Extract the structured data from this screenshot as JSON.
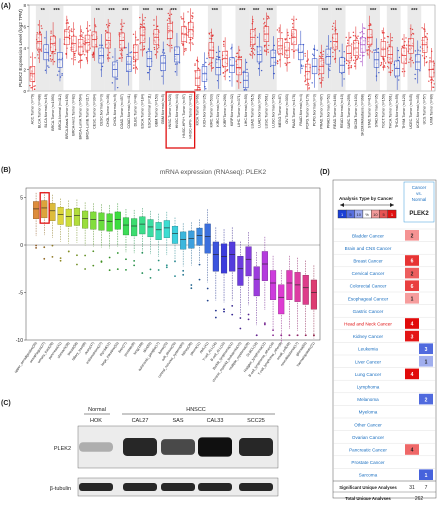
{
  "panel_labels": {
    "a": "(A)",
    "b": "(B)",
    "c": "(C)",
    "d": "(D)"
  },
  "chart_data": [
    {
      "type": "box",
      "panel": "A",
      "ylabel": "PLEK2 Expression Level (log2 TPM)",
      "xlabel": "",
      "ylim": [
        0,
        8
      ],
      "yticks": [
        "0",
        "2",
        "4",
        "6",
        "8"
      ],
      "colors": {
        "tumor": "#e02020",
        "normal": "#2040c0",
        "metastasis": "#a040c0",
        "gray": "#d8d8d8"
      },
      "categories": [
        {
          "label": "ACC.Tumor (n=79)",
          "kind": "tumor",
          "median": 1.6,
          "sig": ""
        },
        {
          "label": "BLCA.Tumor (n=408)",
          "kind": "tumor",
          "median": 4.6,
          "sig": "**"
        },
        {
          "label": "BLCA.Normal (n=19)",
          "kind": "normal",
          "median": 3.6,
          "sig": ""
        },
        {
          "label": "BRCA.Tumor (n=1093)",
          "kind": "tumor",
          "median": 4.4,
          "sig": "***"
        },
        {
          "label": "BRCA.Normal (n=112)",
          "kind": "normal",
          "median": 2.9,
          "sig": ""
        },
        {
          "label": "BRCA-Basal.Tumor (n=190)",
          "kind": "tumor",
          "median": 5.0,
          "sig": ""
        },
        {
          "label": "BRCA-Her2.Tumor (n=82)",
          "kind": "tumor",
          "median": 4.4,
          "sig": ""
        },
        {
          "label": "BRCA-LumA.Tumor (n=564)",
          "kind": "tumor",
          "median": 4.1,
          "sig": ""
        },
        {
          "label": "BRCA-LumB.Tumor (n=217)",
          "kind": "tumor",
          "median": 4.5,
          "sig": ""
        },
        {
          "label": "CESC.Tumor (n=304)",
          "kind": "tumor",
          "median": 4.8,
          "sig": "**"
        },
        {
          "label": "CESC.Normal (n=3)",
          "kind": "normal",
          "median": 3.3,
          "sig": ""
        },
        {
          "label": "CHOL.Tumor (n=36)",
          "kind": "tumor",
          "median": 4.7,
          "sig": "***"
        },
        {
          "label": "CHOL.Normal (n=9)",
          "kind": "normal",
          "median": 2.0,
          "sig": ""
        },
        {
          "label": "COAD.Tumor (n=457)",
          "kind": "tumor",
          "median": 4.7,
          "sig": "***"
        },
        {
          "label": "COAD.Normal (n=41)",
          "kind": "normal",
          "median": 2.5,
          "sig": ""
        },
        {
          "label": "DLBC.Tumor (n=48)",
          "kind": "tumor",
          "median": 3.6,
          "sig": ""
        },
        {
          "label": "ESCA.Tumor (n=184)",
          "kind": "tumor",
          "median": 5.2,
          "sig": "***"
        },
        {
          "label": "ESCA.Normal (n=11)",
          "kind": "normal",
          "median": 3.0,
          "sig": ""
        },
        {
          "label": "GBM.Tumor (n=153)",
          "kind": "tumor",
          "median": 5.0,
          "sig": "***"
        },
        {
          "label": "GBM.Normal (n=5)",
          "kind": "normal",
          "median": 2.6,
          "sig": ""
        },
        {
          "label": "HNSC.Tumor (n=520)",
          "kind": "tumor",
          "median": 5.6,
          "sig": "***"
        },
        {
          "label": "HNSC.Normal (n=44)",
          "kind": "normal",
          "median": 3.4,
          "sig": ""
        },
        {
          "label": "HNSC-HPV+.Tumor (n=97)",
          "kind": "tumor",
          "median": 5.3,
          "sig": ""
        },
        {
          "label": "HNSC-HPV-.Tumor (n=421)",
          "kind": "tumor",
          "median": 5.7,
          "sig": ""
        },
        {
          "label": "KICH.Tumor (n=66)",
          "kind": "tumor",
          "median": 1.2,
          "sig": ""
        },
        {
          "label": "KICH.Normal (n=25)",
          "kind": "normal",
          "median": 1.6,
          "sig": ""
        },
        {
          "label": "KIRC.Tumor (n=533)",
          "kind": "tumor",
          "median": 3.8,
          "sig": "***"
        },
        {
          "label": "KIRC.Normal (n=72)",
          "kind": "normal",
          "median": 2.2,
          "sig": ""
        },
        {
          "label": "KIRP.Tumor (n=290)",
          "kind": "tumor",
          "median": 3.0,
          "sig": ""
        },
        {
          "label": "KIRP.Normal (n=32)",
          "kind": "normal",
          "median": 2.4,
          "sig": ""
        },
        {
          "label": "LIHC.Tumor (n=371)",
          "kind": "tumor",
          "median": 2.2,
          "sig": "***"
        },
        {
          "label": "LIHC.Normal (n=50)",
          "kind": "normal",
          "median": 1.0,
          "sig": ""
        },
        {
          "label": "LUAD.Tumor (n=515)",
          "kind": "tumor",
          "median": 5.0,
          "sig": "***"
        },
        {
          "label": "LUAD.Normal (n=59)",
          "kind": "normal",
          "median": 3.4,
          "sig": ""
        },
        {
          "label": "LUSC.Tumor (n=501)",
          "kind": "tumor",
          "median": 5.3,
          "sig": "***"
        },
        {
          "label": "LUSC.Normal (n=52)",
          "kind": "normal",
          "median": 3.1,
          "sig": ""
        },
        {
          "label": "MESO.Tumor (n=87)",
          "kind": "tumor",
          "median": 4.2,
          "sig": ""
        },
        {
          "label": "OV.Tumor (n=303)",
          "kind": "tumor",
          "median": 3.8,
          "sig": ""
        },
        {
          "label": "PAAD.Tumor (n=178)",
          "kind": "tumor",
          "median": 5.0,
          "sig": ""
        },
        {
          "label": "PAAD.Normal (n=4)",
          "kind": "normal",
          "median": 3.6,
          "sig": ""
        },
        {
          "label": "PCPG.Tumor (n=179)",
          "kind": "tumor",
          "median": 1.8,
          "sig": ""
        },
        {
          "label": "PCPG.Normal (n=3)",
          "kind": "normal",
          "median": 2.3,
          "sig": ""
        },
        {
          "label": "PRAD.Tumor (n=497)",
          "kind": "tumor",
          "median": 2.3,
          "sig": "***"
        },
        {
          "label": "PRAD.Normal (n=52)",
          "kind": "normal",
          "median": 3.2,
          "sig": ""
        },
        {
          "label": "READ.Tumor (n=166)",
          "kind": "tumor",
          "median": 4.6,
          "sig": "***"
        },
        {
          "label": "READ.Normal (n=10)",
          "kind": "normal",
          "median": 2.4,
          "sig": ""
        },
        {
          "label": "SARC.Tumor (n=259)",
          "kind": "tumor",
          "median": 3.5,
          "sig": ""
        },
        {
          "label": "SKCM.Tumor (n=103)",
          "kind": "tumor",
          "median": 4.0,
          "sig": ""
        },
        {
          "label": "SKCM.Metastasis (n=368)",
          "kind": "metastasis",
          "median": 4.3,
          "sig": ""
        },
        {
          "label": "STAD.Tumor (n=415)",
          "kind": "tumor",
          "median": 5.0,
          "sig": "***"
        },
        {
          "label": "STAD.Normal (n=35)",
          "kind": "normal",
          "median": 2.9,
          "sig": ""
        },
        {
          "label": "TGCT.Tumor (n=150)",
          "kind": "tumor",
          "median": 3.9,
          "sig": ""
        },
        {
          "label": "THCA.Tumor (n=501)",
          "kind": "tumor",
          "median": 3.4,
          "sig": "***"
        },
        {
          "label": "THCA.Normal (n=59)",
          "kind": "normal",
          "median": 2.1,
          "sig": ""
        },
        {
          "label": "THYM.Tumor (n=120)",
          "kind": "tumor",
          "median": 3.3,
          "sig": ""
        },
        {
          "label": "UCEC.Tumor (n=545)",
          "kind": "tumor",
          "median": 4.2,
          "sig": "***"
        },
        {
          "label": "UCEC.Normal (n=35)",
          "kind": "normal",
          "median": 2.7,
          "sig": ""
        },
        {
          "label": "UCS.Tumor (n=57)",
          "kind": "tumor",
          "median": 4.3,
          "sig": ""
        },
        {
          "label": "UVM.Tumor (n=80)",
          "kind": "tumor",
          "median": 2.0,
          "sig": ""
        }
      ]
    },
    {
      "type": "box",
      "panel": "B",
      "title": "mRNA expression (RNAseq): PLEK2",
      "ylim": [
        -10,
        6
      ],
      "yticks": [
        "5",
        "0",
        "-5",
        "-10"
      ],
      "categories": [
        {
          "label": "upper_aerodigestive(35)",
          "median": 3.8
        },
        {
          "label": "oesophagus(27)",
          "median": 3.9
        },
        {
          "label": "urinary_tract(26)",
          "median": 3.6
        },
        {
          "label": "pancreas(41)",
          "median": 3.2
        },
        {
          "label": "stomach(38)",
          "median": 3.0
        },
        {
          "label": "breast(58)",
          "median": 3.1
        },
        {
          "label": "biliary_tract(8)",
          "median": 2.8
        },
        {
          "label": "ovary(47)",
          "median": 2.7
        },
        {
          "label": "endometrium(27)",
          "median": 2.6
        },
        {
          "label": "thyroid(12)",
          "median": 2.5
        },
        {
          "label": "large_intestine(55)",
          "median": 2.7
        },
        {
          "label": "liver(27)",
          "median": 2.1
        },
        {
          "label": "prostate(8)",
          "median": 2.0
        },
        {
          "label": "lung(188)",
          "median": 2.2
        },
        {
          "label": "skin(60)",
          "median": 1.9
        },
        {
          "label": "autonomic_ganglia(17)",
          "median": 1.6
        },
        {
          "label": "bone(25)",
          "median": 1.8
        },
        {
          "label": "soft_tissue(20)",
          "median": 1.2
        },
        {
          "label": "central_nervous_system(65)",
          "median": 0.6
        },
        {
          "label": "kidney(36)",
          "median": 0.7
        },
        {
          "label": "pleura(11)",
          "median": 1.0
        },
        {
          "label": "AML(41)",
          "median": 0.9
        },
        {
          "label": "T-cell_ALL(16)",
          "median": -1.0
        },
        {
          "label": "B-cell_ALL(15)",
          "median": -1.2
        },
        {
          "label": "Burkitt_lymphoma(11)",
          "median": -1.0
        },
        {
          "label": "chronic_myeloid_leukaemia(15)",
          "median": -2.5
        },
        {
          "label": "multiple_myeloma(29)",
          "median": -1.5
        },
        {
          "label": "DLBCL(18)",
          "median": -3.6
        },
        {
          "label": "Hodgkin_lymphoma(12)",
          "median": -2.0
        },
        {
          "label": "B-cell_lymphoma_other(10)",
          "median": -4.0
        },
        {
          "label": "T-cell_lymphoma_other(9)",
          "median": -5.5
        },
        {
          "label": "small_cell(48)",
          "median": -4.0
        },
        {
          "label": "neuroblastoma(17)",
          "median": -4.2
        },
        {
          "label": "glioma(60)",
          "median": -4.5
        },
        {
          "label": "haematopoietic(21)",
          "median": -5.0
        }
      ]
    }
  ],
  "panel_c": {
    "group_labels": [
      "Normal",
      "HNSCC"
    ],
    "lane_labels": [
      "HOK",
      "CAL27",
      "SAS",
      "CAL33",
      "SCC25"
    ],
    "row_labels": [
      "PLEK2",
      "β-tubulin"
    ],
    "plek2_band_level": [
      0.25,
      0.85,
      0.7,
      0.95,
      0.85
    ],
    "tubulin_band_level": [
      0.85,
      0.85,
      0.85,
      0.85,
      0.85
    ]
  },
  "panel_d": {
    "legend_title": "Analysis Type by Cancer",
    "legend_scale": [
      "1",
      "5",
      "10",
      "%",
      "10",
      "5",
      "1"
    ],
    "header_top": "Cancer vs. Normal",
    "gene": "PLEK2",
    "rows": [
      {
        "name": "Bladder Cancer",
        "up": "2",
        "down": "",
        "up_level": 0.35,
        "down_level": 0
      },
      {
        "name": "Brain and CNS Cancer",
        "up": "",
        "down": "",
        "up_level": 0,
        "down_level": 0
      },
      {
        "name": "Breast Cancer",
        "up": "6",
        "down": "",
        "up_level": 0.8,
        "down_level": 0
      },
      {
        "name": "Cervical Cancer",
        "up": "2",
        "down": "",
        "up_level": 0.6,
        "down_level": 0
      },
      {
        "name": "Colorectal Cancer",
        "up": "6",
        "down": "",
        "up_level": 0.75,
        "down_level": 0
      },
      {
        "name": "Esophageal Cancer",
        "up": "1",
        "down": "",
        "up_level": 0.3,
        "down_level": 0
      },
      {
        "name": "Gastric Cancer",
        "up": "",
        "down": "",
        "up_level": 0,
        "down_level": 0
      },
      {
        "name": "Head and Neck Cancer",
        "up": "4",
        "down": "",
        "up_level": 1.0,
        "down_level": 0,
        "highlight": true
      },
      {
        "name": "Kidney Cancer",
        "up": "3",
        "down": "",
        "up_level": 0.95,
        "down_level": 0
      },
      {
        "name": "Leukemia",
        "up": "",
        "down": "3",
        "up_level": 0,
        "down_level": 0.7
      },
      {
        "name": "Liver Cancer",
        "up": "",
        "down": "1",
        "up_level": 0,
        "down_level": 0.3
      },
      {
        "name": "Lung Cancer",
        "up": "4",
        "down": "",
        "up_level": 1.0,
        "down_level": 0
      },
      {
        "name": "Lymphoma",
        "up": "",
        "down": "",
        "up_level": 0,
        "down_level": 0
      },
      {
        "name": "Melanoma",
        "up": "",
        "down": "2",
        "up_level": 0,
        "down_level": 0.7
      },
      {
        "name": "Myeloma",
        "up": "",
        "down": "",
        "up_level": 0,
        "down_level": 0
      },
      {
        "name": "Other Cancer",
        "up": "",
        "down": "",
        "up_level": 0,
        "down_level": 0
      },
      {
        "name": "Ovarian Cancer",
        "up": "",
        "down": "",
        "up_level": 0,
        "down_level": 0
      },
      {
        "name": "Pancreatic Cancer",
        "up": "4",
        "down": "",
        "up_level": 0.55,
        "down_level": 0
      },
      {
        "name": "Prostate Cancer",
        "up": "",
        "down": "",
        "up_level": 0,
        "down_level": 0
      },
      {
        "name": "Sarcoma",
        "up": "",
        "down": "1",
        "up_level": 0,
        "down_level": 0.75
      }
    ],
    "sig_label": "Significant Unique Analyses",
    "sig_up": "31",
    "sig_down": "7",
    "total_label": "Total Unique Analyses",
    "total": "262"
  }
}
